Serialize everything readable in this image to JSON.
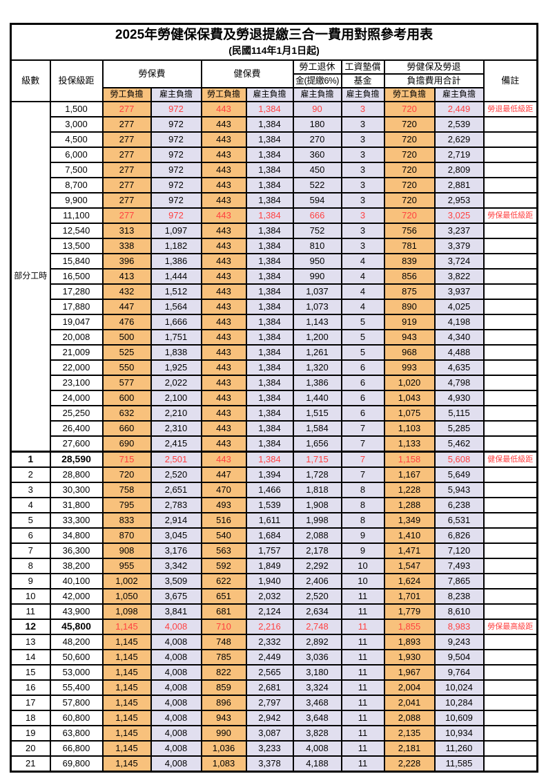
{
  "title": {
    "line1": "2025年勞健保保費及勞退提繳三合一費用對照參考用表",
    "line2": "(民國114年1月1日起)"
  },
  "colors": {
    "employee_bg": "#F8C17C",
    "employer_bg": "#E1DFEF",
    "highlight_text": "#FF4040",
    "border": "#000000"
  },
  "table": {
    "header": {
      "level": "級數",
      "bracket": "投保級距",
      "labor_insurance": "勞保費",
      "health_insurance": "健保費",
      "pension_line1": "勞工退休",
      "pension_line2": "金(提繳6%)",
      "fund_line1": "工資墊償",
      "fund_line2": "基金",
      "total_line1": "勞健保及勞退",
      "total_line2": "負擔費用合計",
      "note": "備註",
      "employee": "勞工負擔",
      "employer": "雇主負擔"
    },
    "part_time_label": "部分工時",
    "part_time_rowspan": 23,
    "rows": [
      {
        "br": "1,500",
        "c": [
          "277",
          "972",
          "443",
          "1,384",
          "90",
          "3",
          "720",
          "2,449"
        ],
        "note": "勞退最低級距",
        "hl": true
      },
      {
        "br": "3,000",
        "c": [
          "277",
          "972",
          "443",
          "1,384",
          "180",
          "3",
          "720",
          "2,539"
        ]
      },
      {
        "br": "4,500",
        "c": [
          "277",
          "972",
          "443",
          "1,384",
          "270",
          "3",
          "720",
          "2,629"
        ]
      },
      {
        "br": "6,000",
        "c": [
          "277",
          "972",
          "443",
          "1,384",
          "360",
          "3",
          "720",
          "2,719"
        ]
      },
      {
        "br": "7,500",
        "c": [
          "277",
          "972",
          "443",
          "1,384",
          "450",
          "3",
          "720",
          "2,809"
        ]
      },
      {
        "br": "8,700",
        "c": [
          "277",
          "972",
          "443",
          "1,384",
          "522",
          "3",
          "720",
          "2,881"
        ]
      },
      {
        "br": "9,900",
        "c": [
          "277",
          "972",
          "443",
          "1,384",
          "594",
          "3",
          "720",
          "2,953"
        ]
      },
      {
        "br": "11,100",
        "c": [
          "277",
          "972",
          "443",
          "1,384",
          "666",
          "3",
          "720",
          "3,025"
        ],
        "note": "勞保最低級距",
        "hl": true
      },
      {
        "br": "12,540",
        "c": [
          "313",
          "1,097",
          "443",
          "1,384",
          "752",
          "3",
          "756",
          "3,237"
        ]
      },
      {
        "br": "13,500",
        "c": [
          "338",
          "1,182",
          "443",
          "1,384",
          "810",
          "3",
          "781",
          "3,379"
        ]
      },
      {
        "br": "15,840",
        "c": [
          "396",
          "1,386",
          "443",
          "1,384",
          "950",
          "4",
          "839",
          "3,724"
        ]
      },
      {
        "br": "16,500",
        "c": [
          "413",
          "1,444",
          "443",
          "1,384",
          "990",
          "4",
          "856",
          "3,822"
        ]
      },
      {
        "br": "17,280",
        "c": [
          "432",
          "1,512",
          "443",
          "1,384",
          "1,037",
          "4",
          "875",
          "3,937"
        ]
      },
      {
        "br": "17,880",
        "c": [
          "447",
          "1,564",
          "443",
          "1,384",
          "1,073",
          "4",
          "890",
          "4,025"
        ]
      },
      {
        "br": "19,047",
        "c": [
          "476",
          "1,666",
          "443",
          "1,384",
          "1,143",
          "5",
          "919",
          "4,198"
        ]
      },
      {
        "br": "20,008",
        "c": [
          "500",
          "1,751",
          "443",
          "1,384",
          "1,200",
          "5",
          "943",
          "4,340"
        ]
      },
      {
        "br": "21,009",
        "c": [
          "525",
          "1,838",
          "443",
          "1,384",
          "1,261",
          "5",
          "968",
          "4,488"
        ]
      },
      {
        "br": "22,000",
        "c": [
          "550",
          "1,925",
          "443",
          "1,384",
          "1,320",
          "6",
          "993",
          "4,635"
        ]
      },
      {
        "br": "23,100",
        "c": [
          "577",
          "2,022",
          "443",
          "1,384",
          "1,386",
          "6",
          "1,020",
          "4,798"
        ]
      },
      {
        "br": "24,000",
        "c": [
          "600",
          "2,100",
          "443",
          "1,384",
          "1,440",
          "6",
          "1,043",
          "4,930"
        ]
      },
      {
        "br": "25,250",
        "c": [
          "632",
          "2,210",
          "443",
          "1,384",
          "1,515",
          "6",
          "1,075",
          "5,115"
        ]
      },
      {
        "br": "26,400",
        "c": [
          "660",
          "2,310",
          "443",
          "1,384",
          "1,584",
          "7",
          "1,103",
          "5,285"
        ]
      },
      {
        "br": "27,600",
        "c": [
          "690",
          "2,415",
          "443",
          "1,384",
          "1,656",
          "7",
          "1,133",
          "5,462"
        ]
      },
      {
        "lv": "1",
        "br": "28,590",
        "c": [
          "715",
          "2,501",
          "443",
          "1,384",
          "1,715",
          "7",
          "1,158",
          "5,608"
        ],
        "note": "健保最低級距",
        "hl": true,
        "b": true,
        "sec": true
      },
      {
        "lv": "2",
        "br": "28,800",
        "c": [
          "720",
          "2,520",
          "447",
          "1,394",
          "1,728",
          "7",
          "1,167",
          "5,649"
        ]
      },
      {
        "lv": "3",
        "br": "30,300",
        "c": [
          "758",
          "2,651",
          "470",
          "1,466",
          "1,818",
          "8",
          "1,228",
          "5,943"
        ]
      },
      {
        "lv": "4",
        "br": "31,800",
        "c": [
          "795",
          "2,783",
          "493",
          "1,539",
          "1,908",
          "8",
          "1,288",
          "6,238"
        ]
      },
      {
        "lv": "5",
        "br": "33,300",
        "c": [
          "833",
          "2,914",
          "516",
          "1,611",
          "1,998",
          "8",
          "1,349",
          "6,531"
        ]
      },
      {
        "lv": "6",
        "br": "34,800",
        "c": [
          "870",
          "3,045",
          "540",
          "1,684",
          "2,088",
          "9",
          "1,410",
          "6,826"
        ]
      },
      {
        "lv": "7",
        "br": "36,300",
        "c": [
          "908",
          "3,176",
          "563",
          "1,757",
          "2,178",
          "9",
          "1,471",
          "7,120"
        ]
      },
      {
        "lv": "8",
        "br": "38,200",
        "c": [
          "955",
          "3,342",
          "592",
          "1,849",
          "2,292",
          "10",
          "1,547",
          "7,493"
        ]
      },
      {
        "lv": "9",
        "br": "40,100",
        "c": [
          "1,002",
          "3,509",
          "622",
          "1,940",
          "2,406",
          "10",
          "1,624",
          "7,865"
        ]
      },
      {
        "lv": "10",
        "br": "42,000",
        "c": [
          "1,050",
          "3,675",
          "651",
          "2,032",
          "2,520",
          "11",
          "1,701",
          "8,238"
        ]
      },
      {
        "lv": "11",
        "br": "43,900",
        "c": [
          "1,098",
          "3,841",
          "681",
          "2,124",
          "2,634",
          "11",
          "1,779",
          "8,610"
        ]
      },
      {
        "lv": "12",
        "br": "45,800",
        "c": [
          "1,145",
          "4,008",
          "710",
          "2,216",
          "2,748",
          "11",
          "1,855",
          "8,983"
        ],
        "note": "勞保最高級距",
        "hl": true,
        "b": true
      },
      {
        "lv": "13",
        "br": "48,200",
        "c": [
          "1,145",
          "4,008",
          "748",
          "2,332",
          "2,892",
          "11",
          "1,893",
          "9,243"
        ]
      },
      {
        "lv": "14",
        "br": "50,600",
        "c": [
          "1,145",
          "4,008",
          "785",
          "2,449",
          "3,036",
          "11",
          "1,930",
          "9,504"
        ]
      },
      {
        "lv": "15",
        "br": "53,000",
        "c": [
          "1,145",
          "4,008",
          "822",
          "2,565",
          "3,180",
          "11",
          "1,967",
          "9,764"
        ]
      },
      {
        "lv": "16",
        "br": "55,400",
        "c": [
          "1,145",
          "4,008",
          "859",
          "2,681",
          "3,324",
          "11",
          "2,004",
          "10,024"
        ]
      },
      {
        "lv": "17",
        "br": "57,800",
        "c": [
          "1,145",
          "4,008",
          "896",
          "2,797",
          "3,468",
          "11",
          "2,041",
          "10,284"
        ]
      },
      {
        "lv": "18",
        "br": "60,800",
        "c": [
          "1,145",
          "4,008",
          "943",
          "2,942",
          "3,648",
          "11",
          "2,088",
          "10,609"
        ]
      },
      {
        "lv": "19",
        "br": "63,800",
        "c": [
          "1,145",
          "4,008",
          "990",
          "3,087",
          "3,828",
          "11",
          "2,135",
          "10,934"
        ]
      },
      {
        "lv": "20",
        "br": "66,800",
        "c": [
          "1,145",
          "4,008",
          "1,036",
          "3,233",
          "4,008",
          "11",
          "2,181",
          "11,260"
        ]
      },
      {
        "lv": "21",
        "br": "69,800",
        "c": [
          "1,145",
          "4,008",
          "1,083",
          "3,378",
          "4,188",
          "11",
          "2,228",
          "11,585"
        ]
      }
    ]
  }
}
